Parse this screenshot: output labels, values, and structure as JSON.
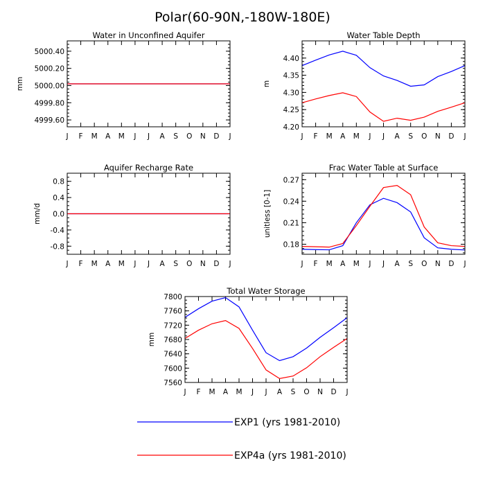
{
  "figure_title": "Polar(60-90N,-180W-180E)",
  "legend": [
    {
      "name": "EXP1 (yrs 1981-2010)",
      "color": "#0000ff"
    },
    {
      "name": "EXP4a (yrs 1981-2010)",
      "color": "#ff0000"
    }
  ],
  "chart_data": [
    {
      "type": "line",
      "title": "Water in Unconfined Aquifer",
      "xlabel": "",
      "ylabel": "mm",
      "categories": [
        "J",
        "F",
        "M",
        "A",
        "M",
        "J",
        "J",
        "A",
        "S",
        "O",
        "N",
        "D",
        "J"
      ],
      "ylim": [
        4999.52,
        5000.52
      ],
      "yticks": [
        4999.6,
        4999.8,
        5000.0,
        5000.2,
        5000.4
      ],
      "ytick_labels": [
        "4999.60",
        "4999.80",
        "5000.00",
        "5000.20",
        "5000.40"
      ],
      "yminor_step": 0.04,
      "series": [
        {
          "name": "EXP1 (yrs 1981-2010)",
          "color": "#0000ff",
          "values": [
            5000.02,
            5000.02,
            5000.02,
            5000.02,
            5000.02,
            5000.02,
            5000.02,
            5000.02,
            5000.02,
            5000.02,
            5000.02,
            5000.02,
            5000.02
          ]
        },
        {
          "name": "EXP4a (yrs 1981-2010)",
          "color": "#ff0000",
          "values": [
            5000.02,
            5000.02,
            5000.02,
            5000.02,
            5000.02,
            5000.02,
            5000.02,
            5000.02,
            5000.02,
            5000.02,
            5000.02,
            5000.02,
            5000.02
          ]
        }
      ]
    },
    {
      "type": "line",
      "title": "Water Table Depth",
      "xlabel": "",
      "ylabel": "m",
      "categories": [
        "J",
        "F",
        "M",
        "A",
        "M",
        "J",
        "J",
        "A",
        "S",
        "O",
        "N",
        "D",
        "J"
      ],
      "ylim": [
        4.2,
        4.45
      ],
      "yticks": [
        4.2,
        4.25,
        4.3,
        4.35,
        4.4
      ],
      "ytick_labels": [
        "4.20",
        "4.25",
        "4.30",
        "4.35",
        "4.40"
      ],
      "yminor_step": 0.01,
      "series": [
        {
          "name": "EXP1 (yrs 1981-2010)",
          "color": "#0000ff",
          "values": [
            4.378,
            4.394,
            4.409,
            4.42,
            4.408,
            4.372,
            4.348,
            4.335,
            4.318,
            4.322,
            4.346,
            4.361,
            4.378
          ]
        },
        {
          "name": "EXP4a (yrs 1981-2010)",
          "color": "#ff0000",
          "values": [
            4.27,
            4.281,
            4.291,
            4.299,
            4.288,
            4.243,
            4.216,
            4.225,
            4.219,
            4.228,
            4.245,
            4.257,
            4.27
          ]
        }
      ]
    },
    {
      "type": "line",
      "title": "Aquifer Recharge Rate",
      "xlabel": "",
      "ylabel": "mm/d",
      "categories": [
        "J",
        "F",
        "M",
        "A",
        "M",
        "J",
        "J",
        "A",
        "S",
        "O",
        "N",
        "D",
        "J"
      ],
      "ylim": [
        -1.0,
        1.0
      ],
      "yticks": [
        -0.8,
        -0.4,
        0.0,
        0.4,
        0.8
      ],
      "ytick_labels": [
        "-0.8",
        "-0.4",
        "0.0",
        "0.4",
        "0.8"
      ],
      "yminor_step": 0.1,
      "series": [
        {
          "name": "EXP1 (yrs 1981-2010)",
          "color": "#0000ff",
          "values": [
            0,
            0,
            0,
            0,
            0,
            0,
            0,
            0,
            0,
            0,
            0,
            0,
            0
          ]
        },
        {
          "name": "EXP4a (yrs 1981-2010)",
          "color": "#ff0000",
          "values": [
            0,
            0,
            0,
            0,
            0,
            0,
            0,
            0,
            0,
            0,
            0,
            0,
            0
          ]
        }
      ]
    },
    {
      "type": "line",
      "title": "Frac Water Table at Surface",
      "xlabel": "",
      "ylabel": "unitless [0-1]",
      "categories": [
        "J",
        "F",
        "M",
        "A",
        "M",
        "J",
        "J",
        "A",
        "S",
        "O",
        "N",
        "D",
        "J"
      ],
      "ylim": [
        0.166,
        0.279
      ],
      "yticks": [
        0.18,
        0.21,
        0.24,
        0.27
      ],
      "ytick_labels": [
        "0.18",
        "0.21",
        "0.24",
        "0.27"
      ],
      "yminor_step": 0.006,
      "series": [
        {
          "name": "EXP1 (yrs 1981-2010)",
          "color": "#0000ff",
          "values": [
            0.173,
            0.1725,
            0.1722,
            0.178,
            0.21,
            0.235,
            0.244,
            0.238,
            0.225,
            0.189,
            0.175,
            0.173,
            0.172
          ]
        },
        {
          "name": "EXP4a (yrs 1981-2010)",
          "color": "#ff0000",
          "values": [
            0.177,
            0.1765,
            0.176,
            0.181,
            0.206,
            0.233,
            0.259,
            0.262,
            0.249,
            0.204,
            0.182,
            0.178,
            0.177
          ]
        }
      ]
    },
    {
      "type": "line",
      "title": "Total Water Storage",
      "xlabel": "",
      "ylabel": "mm",
      "categories": [
        "J",
        "F",
        "M",
        "A",
        "M",
        "J",
        "J",
        "A",
        "S",
        "O",
        "N",
        "D",
        "J"
      ],
      "ylim": [
        7560,
        7800
      ],
      "yticks": [
        7560,
        7600,
        7640,
        7680,
        7720,
        7760,
        7800
      ],
      "ytick_labels": [
        "7560",
        "7600",
        "7640",
        "7680",
        "7720",
        "7760",
        "7800"
      ],
      "yminor_step": 10,
      "series": [
        {
          "name": "EXP1 (yrs 1981-2010)",
          "color": "#0000ff",
          "values": [
            7742,
            7766,
            7787,
            7797,
            7771,
            7706,
            7643,
            7621,
            7632,
            7656,
            7686,
            7713,
            7741
          ]
        },
        {
          "name": "EXP4a (yrs 1981-2010)",
          "color": "#ff0000",
          "values": [
            7683,
            7706,
            7724,
            7733,
            7711,
            7655,
            7595,
            7571,
            7578,
            7601,
            7632,
            7658,
            7683
          ]
        }
      ]
    }
  ]
}
